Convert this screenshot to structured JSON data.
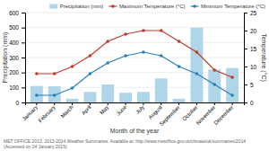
{
  "chart_data": {
    "type": "bar",
    "categories": [
      "January",
      "February",
      "March",
      "April",
      "May",
      "June",
      "July",
      "August",
      "September",
      "October",
      "November",
      "December"
    ],
    "series": [
      {
        "name": "Precipitation (mm)",
        "type": "bar",
        "color": "#aed6e8",
        "values": [
          110,
          108,
          25,
          70,
          120,
          65,
          70,
          160,
          25,
          500,
          220,
          230
        ]
      },
      {
        "name": "Maximum Temperature (°C)",
        "type": "line",
        "axis": "y2",
        "color": "#c0392b",
        "marker": "circle",
        "line_style": "solid",
        "values": [
          8,
          8,
          10,
          13,
          17,
          19,
          20,
          20,
          17,
          14,
          9,
          7
        ]
      },
      {
        "name": "Minimum Temperature (°C)",
        "type": "line",
        "axis": "y2",
        "color": "#2980b9",
        "marker": "circle",
        "line_style": "solid",
        "values": [
          2,
          2,
          4,
          8,
          11,
          13,
          14,
          13,
          10,
          8,
          5,
          2
        ]
      }
    ],
    "xlabel": "Month of the year",
    "ylabel": "Precipitation (mm)",
    "y2label": "Temperature (°C)",
    "ylim": [
      0,
      600
    ],
    "yticks": [
      0,
      100,
      200,
      300,
      400,
      500,
      600
    ],
    "y2lim": [
      0,
      25
    ],
    "y2ticks": [
      0,
      5,
      10,
      15,
      20,
      25
    ],
    "grid": true,
    "legend": "top",
    "annotations": [
      "MET OFFICE 2013, 2013-2014 Weather Summaries. Available at: http://www.metoffice.gov.uk/climate/uk/summaries/2014 (Accessed on 24 January 2015)"
    ]
  }
}
